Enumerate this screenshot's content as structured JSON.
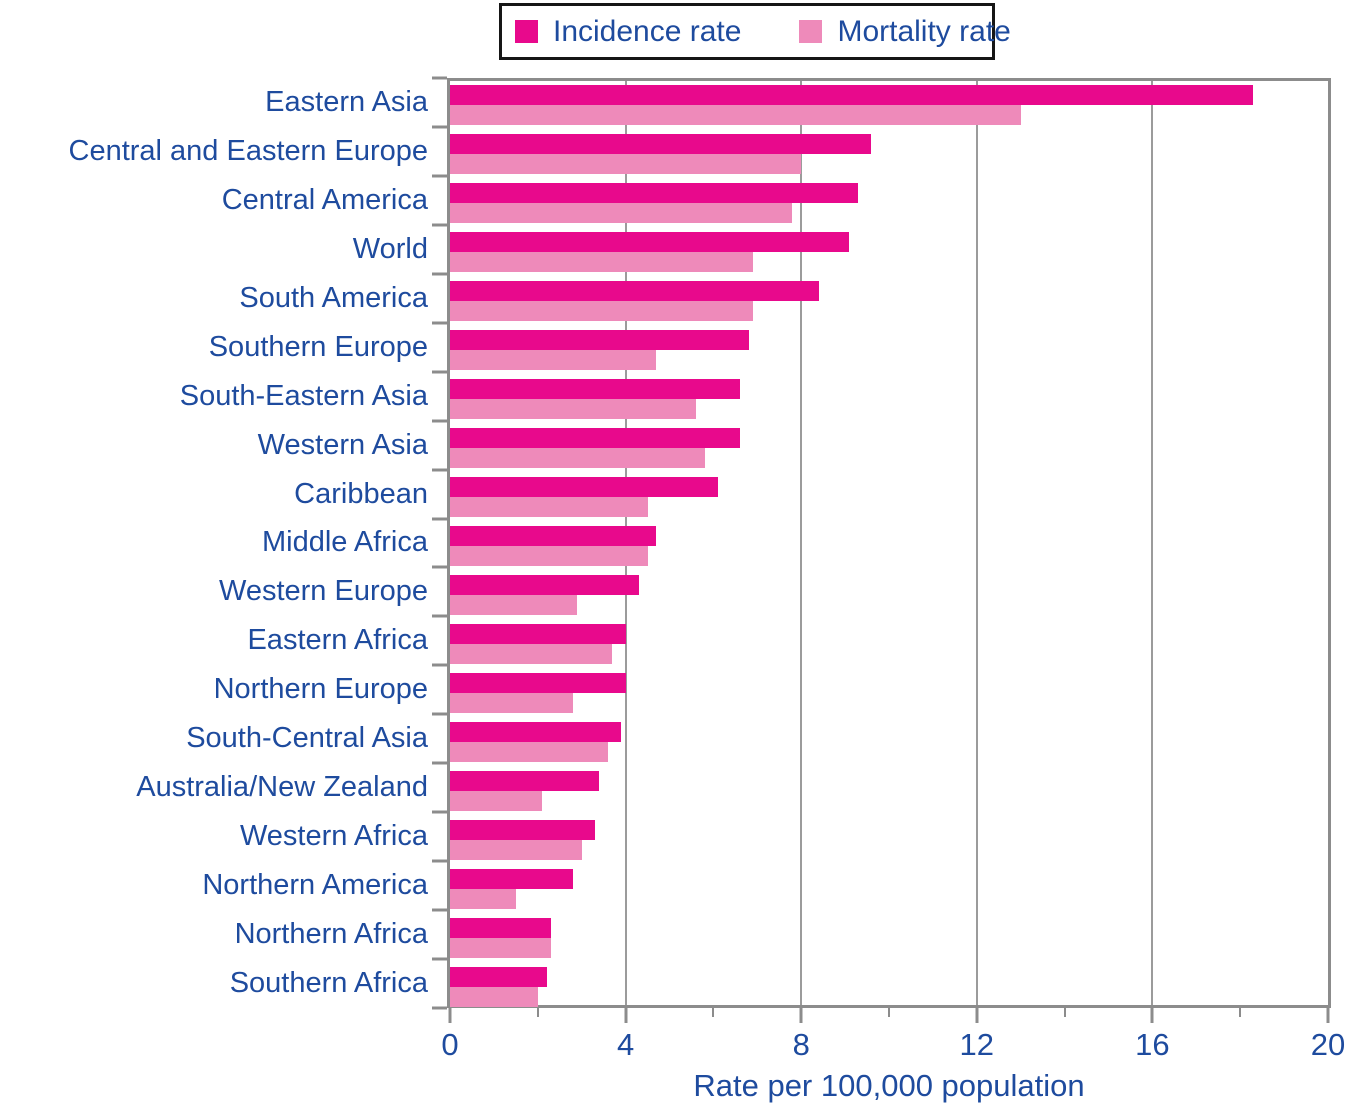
{
  "colors": {
    "incidence": "#E8098C",
    "mortality": "#EE8ABA",
    "text_blue": "#1E4B9E",
    "axis_gray": "#8C8C8C",
    "grid_gray": "#9B9B9B",
    "legend_border": "#161616",
    "background": "#FFFFFF"
  },
  "legend": {
    "position": "top",
    "items": [
      {
        "label": "Incidence rate",
        "series": "incidence"
      },
      {
        "label": "Mortality rate",
        "series": "mortality"
      }
    ]
  },
  "chart_data": {
    "type": "bar",
    "orientation": "horizontal",
    "title": "",
    "xlabel": "Rate per 100,000 population",
    "ylabel": "",
    "xlim": [
      0,
      20
    ],
    "x_major_ticks": [
      0,
      4,
      8,
      12,
      16,
      20
    ],
    "x_minor_ticks": [
      2,
      6,
      10,
      14,
      18
    ],
    "grid": "vertical-major",
    "legend_position": "top-center",
    "categories": [
      "Eastern Asia",
      "Central and Eastern Europe",
      "Central America",
      "World",
      "South America",
      "Southern Europe",
      "South-Eastern Asia",
      "Western Asia",
      "Caribbean",
      "Middle Africa",
      "Western Europe",
      "Eastern Africa",
      "Northern Europe",
      "South-Central Asia",
      "Australia/New Zealand",
      "Western Africa",
      "Northern America",
      "Northern Africa",
      "Southern Africa"
    ],
    "series": [
      {
        "name": "Incidence rate",
        "color": "#E8098C",
        "values": [
          18.3,
          9.6,
          9.3,
          9.1,
          8.4,
          6.8,
          6.6,
          6.6,
          6.1,
          4.7,
          4.3,
          4.0,
          4.0,
          3.9,
          3.4,
          3.3,
          2.8,
          2.3,
          2.2
        ]
      },
      {
        "name": "Mortality rate",
        "color": "#EE8ABA",
        "values": [
          13.0,
          8.0,
          7.8,
          6.9,
          6.9,
          4.7,
          5.6,
          5.8,
          4.5,
          4.5,
          2.9,
          3.7,
          2.8,
          3.6,
          2.1,
          3.0,
          1.5,
          2.3,
          2.0
        ]
      }
    ]
  }
}
